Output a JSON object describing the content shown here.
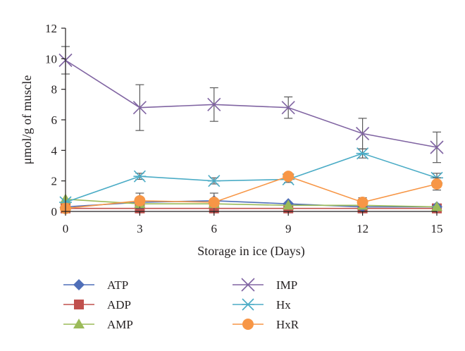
{
  "chart_data": {
    "type": "line",
    "xlabel": "Storage in ice (Days)",
    "ylabel": "μmol/g of muscle",
    "x": [
      0,
      3,
      6,
      9,
      12,
      15
    ],
    "xlim": [
      0,
      15
    ],
    "ylim": [
      0,
      12
    ],
    "xticks": [
      "0",
      "3",
      "6",
      "9",
      "12",
      "15"
    ],
    "yticks": [
      "0",
      "2",
      "4",
      "6",
      "8",
      "10",
      "12"
    ],
    "grid": false,
    "legend_position": "bottom",
    "series": [
      {
        "name": "ATP",
        "marker": "diamond",
        "color": "#4f6eb8",
        "values": [
          0.3,
          0.6,
          0.7,
          0.5,
          0.3,
          0.3
        ],
        "errors": [
          0.1,
          0.1,
          0.1,
          0.1,
          0.1,
          0.1
        ]
      },
      {
        "name": "ADP",
        "marker": "square",
        "color": "#c0504d",
        "values": [
          0.2,
          0.2,
          0.2,
          0.2,
          0.2,
          0.2
        ],
        "errors": [
          0.05,
          0.05,
          0.05,
          0.05,
          0.05,
          0.05
        ]
      },
      {
        "name": "AMP",
        "marker": "triangle",
        "color": "#9bbb59",
        "values": [
          0.8,
          0.5,
          0.5,
          0.4,
          0.4,
          0.3
        ],
        "errors": [
          0.1,
          0.1,
          0.1,
          0.1,
          0.1,
          0.1
        ]
      },
      {
        "name": "IMP",
        "marker": "x",
        "color": "#8064a2",
        "values": [
          9.9,
          6.8,
          7.0,
          6.8,
          5.1,
          4.2
        ],
        "errors": [
          0.9,
          1.5,
          1.1,
          0.7,
          1.0,
          1.0
        ]
      },
      {
        "name": "Hx",
        "marker": "asterisk",
        "color": "#4bacc6",
        "values": [
          0.6,
          2.3,
          2.0,
          2.1,
          3.8,
          2.2
        ],
        "errors": [
          0.1,
          0.2,
          0.2,
          0.2,
          0.3,
          0.3
        ]
      },
      {
        "name": "HxR",
        "marker": "circle",
        "color": "#f79646",
        "values": [
          0.2,
          0.7,
          0.6,
          2.3,
          0.6,
          1.8
        ],
        "errors": [
          0.1,
          0.5,
          0.6,
          0.2,
          0.3,
          0.4
        ]
      }
    ]
  }
}
